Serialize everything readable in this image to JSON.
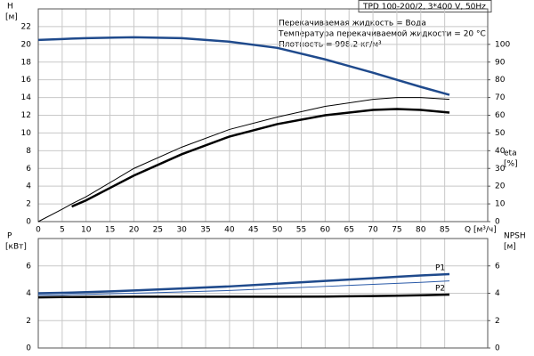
{
  "chart_data": [
    {
      "type": "line",
      "title": "TPD 100-200/2, 3*400 V, 50Hz",
      "notes": [
        "Перекачиваемая жидкость = Вода",
        "Температура перекачиваемой жидкости = 20 °C",
        "Плотность = 998.2 кг/м³"
      ],
      "y_label": "H",
      "y_unit": "[м]",
      "y2_label": "eta",
      "y2_unit": "[%]",
      "x_label": "Q [м³/ч]",
      "x": [
        0,
        5,
        7,
        10,
        20,
        30,
        40,
        50,
        60,
        70,
        75,
        80,
        86
      ],
      "xlim": [
        0,
        94
      ],
      "xticks": [
        0,
        5,
        10,
        15,
        20,
        25,
        30,
        35,
        40,
        45,
        50,
        55,
        60,
        65,
        70,
        75,
        80,
        85
      ],
      "ylim": [
        0,
        24
      ],
      "yticks": [
        0,
        2,
        4,
        6,
        8,
        10,
        12,
        14,
        16,
        18,
        20,
        22
      ],
      "y2lim": [
        0,
        120
      ],
      "y2ticks": [
        0,
        10,
        20,
        30,
        40,
        50,
        60,
        70,
        80,
        90,
        100
      ],
      "grid": true,
      "series": [
        {
          "color": "#1f4a8c",
          "values": [
            20.5,
            20.6,
            20.65,
            20.7,
            20.8,
            20.7,
            20.3,
            19.6,
            18.3,
            16.8,
            16.0,
            15.2,
            14.3
          ]
        },
        {
          "color": "#000000",
          "axis": "y2",
          "values": [
            0,
            7,
            10,
            14,
            30,
            42,
            52,
            59,
            65,
            69,
            70,
            70,
            69
          ]
        },
        {
          "color": "#000000",
          "axis": "y2",
          "values": [
            null,
            null,
            8.5,
            12,
            26,
            38,
            48,
            55,
            60,
            63,
            63.5,
            63,
            61.5
          ]
        }
      ]
    },
    {
      "type": "line",
      "y_label": "P",
      "y_unit": "[кВт]",
      "y2_label": "NPSH",
      "y2_unit": "[м]",
      "x": [
        0,
        5,
        7,
        10,
        20,
        30,
        40,
        50,
        60,
        70,
        75,
        80,
        86
      ],
      "xlim": [
        0,
        94
      ],
      "xticks": [
        0,
        5,
        10,
        15,
        20,
        25,
        30,
        35,
        40,
        45,
        50,
        55,
        60,
        65,
        70,
        75,
        80,
        85
      ],
      "ylim": [
        0,
        8
      ],
      "yticks": [
        0,
        2,
        4,
        6
      ],
      "y2lim": [
        0,
        8
      ],
      "y2ticks": [
        0,
        2,
        4,
        6
      ],
      "grid": true,
      "annotations": [
        "P1",
        "P2"
      ],
      "series": [
        {
          "color": "#1f4a8c",
          "values": [
            4.0,
            4.03,
            4.05,
            4.08,
            4.2,
            4.35,
            4.5,
            4.7,
            4.9,
            5.1,
            5.2,
            5.3,
            5.4
          ]
        },
        {
          "color": "#2a5aa8",
          "values": [
            3.85,
            3.87,
            3.9,
            3.92,
            4.0,
            4.1,
            4.2,
            4.35,
            4.5,
            4.65,
            4.72,
            4.8,
            4.9
          ]
        },
        {
          "color": "#000000",
          "axis": "y2",
          "values": [
            3.7,
            3.72,
            3.72,
            3.73,
            3.75,
            3.75,
            3.75,
            3.75,
            3.76,
            3.8,
            3.82,
            3.85,
            3.9
          ]
        }
      ]
    }
  ]
}
